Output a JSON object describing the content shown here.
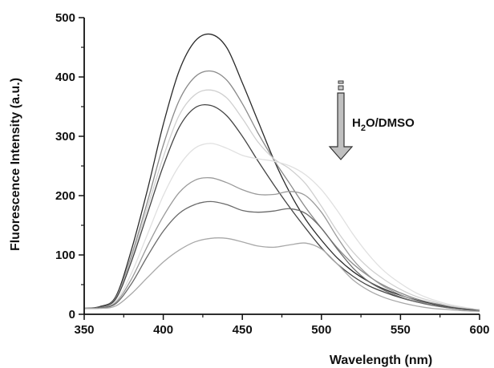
{
  "chart_data": {
    "type": "line",
    "xlabel": "Wavelength (nm)",
    "ylabel": "Fluorescence Intensity (a.u.)",
    "xlim": [
      350,
      600
    ],
    "ylim": [
      0,
      500
    ],
    "x_ticks": [
      350,
      400,
      450,
      500,
      550,
      600
    ],
    "y_ticks": [
      0,
      100,
      200,
      300,
      400,
      500
    ],
    "grid": false,
    "annotation": {
      "text_main": "H",
      "text_sub": "2",
      "text_rest": "O/DMSO",
      "icon": "down-arrow-icon",
      "direction": "decreasing"
    },
    "x": [
      350,
      360,
      370,
      380,
      390,
      400,
      410,
      420,
      430,
      440,
      450,
      460,
      470,
      480,
      490,
      500,
      510,
      520,
      530,
      540,
      550,
      560,
      570,
      580,
      590,
      600
    ],
    "series": [
      {
        "color": "#2a2a2a",
        "values": [
          10,
          13,
          30,
          110,
          210,
          320,
          410,
          460,
          472,
          450,
          390,
          325,
          260,
          205,
          160,
          125,
          95,
          72,
          55,
          42,
          32,
          24,
          18,
          13,
          10,
          8
        ]
      },
      {
        "color": "#8a8a8a",
        "values": [
          10,
          12,
          28,
          100,
          190,
          285,
          360,
          400,
          410,
          395,
          355,
          305,
          260,
          220,
          180,
          145,
          112,
          85,
          64,
          48,
          36,
          26,
          19,
          14,
          10,
          8
        ]
      },
      {
        "color": "#d0d0d0",
        "values": [
          10,
          12,
          26,
          95,
          180,
          265,
          335,
          370,
          378,
          365,
          330,
          290,
          262,
          245,
          220,
          182,
          140,
          105,
          78,
          58,
          42,
          30,
          22,
          15,
          11,
          8
        ]
      },
      {
        "color": "#454545",
        "values": [
          10,
          12,
          26,
          90,
          170,
          250,
          315,
          348,
          352,
          335,
          300,
          258,
          218,
          180,
          145,
          112,
          85,
          64,
          48,
          37,
          28,
          21,
          16,
          12,
          9,
          7
        ]
      },
      {
        "color": "#e0e0e0",
        "values": [
          10,
          11,
          22,
          70,
          135,
          200,
          250,
          280,
          288,
          280,
          268,
          262,
          258,
          250,
          235,
          210,
          175,
          135,
          100,
          72,
          52,
          36,
          25,
          17,
          12,
          8
        ]
      },
      {
        "color": "#9a9a9a",
        "values": [
          10,
          11,
          20,
          60,
          115,
          165,
          205,
          226,
          230,
          222,
          210,
          202,
          202,
          207,
          200,
          172,
          130,
          92,
          65,
          46,
          33,
          23,
          16,
          11,
          8,
          6
        ]
      },
      {
        "color": "#6a6a6a",
        "values": [
          10,
          11,
          18,
          52,
          98,
          140,
          170,
          185,
          190,
          185,
          175,
          172,
          174,
          178,
          170,
          145,
          110,
          78,
          55,
          40,
          29,
          21,
          15,
          11,
          8,
          6
        ]
      },
      {
        "color": "#a8a8a8",
        "values": [
          10,
          10,
          14,
          35,
          62,
          88,
          108,
          122,
          128,
          128,
          122,
          115,
          113,
          117,
          120,
          110,
          85,
          58,
          40,
          28,
          20,
          14,
          10,
          8,
          6,
          5
        ]
      }
    ]
  }
}
